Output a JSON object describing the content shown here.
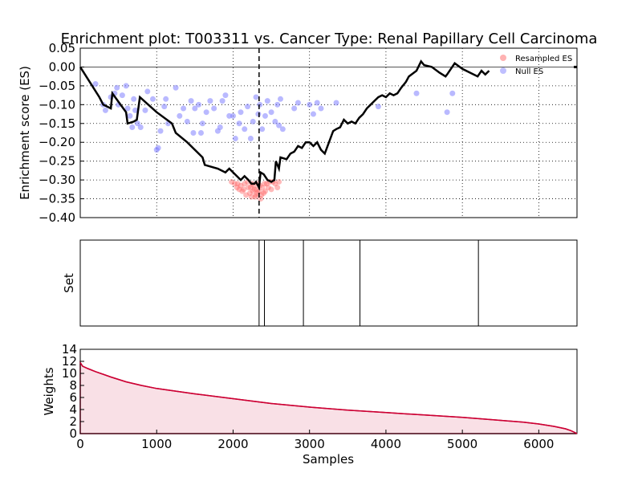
{
  "title": "Enrichment plot: T003311 vs. Cancer Type: Renal Papillary Cell Carcinoma",
  "colors": {
    "es_line": "#000000",
    "resampled": "#ff6666",
    "null_es": "#8080ff",
    "weights": "#cc0033",
    "grid": "#000000"
  },
  "chart_data": [
    {
      "type": "line",
      "panel": "enrichment",
      "ylabel": "Enrichment score (ES)",
      "xlim": [
        0,
        6500
      ],
      "ylim": [
        -0.4,
        0.05
      ],
      "yticks": [
        "0.05",
        "0.00",
        "−0.05",
        "−0.10",
        "−0.15",
        "−0.20",
        "−0.25",
        "−0.30",
        "−0.35",
        "−0.40"
      ],
      "ytick_values": [
        0.05,
        0.0,
        -0.05,
        -0.1,
        -0.15,
        -0.2,
        -0.25,
        -0.3,
        -0.35,
        -0.4
      ],
      "xgrid": [
        1000,
        2000,
        3000,
        4000,
        5000,
        6000
      ],
      "grid": true,
      "legend_position": "top-right",
      "legend": [
        {
          "label": "Resampled ES",
          "color": "#ff6666"
        },
        {
          "label": "Null ES",
          "color": "#8080ff"
        }
      ],
      "max_es_position": 2340,
      "es_series": {
        "name": "ES",
        "x": [
          0,
          250,
          300,
          400,
          420,
          600,
          620,
          700,
          740,
          780,
          1000,
          1200,
          1250,
          1400,
          1600,
          1630,
          1800,
          1900,
          1950,
          2050,
          2100,
          2150,
          2200,
          2240,
          2280,
          2300,
          2340,
          2360,
          2400,
          2450,
          2500,
          2540,
          2560,
          2600,
          2620,
          2700,
          2750,
          2800,
          2850,
          2900,
          2950,
          3000,
          3050,
          3100,
          3150,
          3200,
          3300,
          3310,
          3350,
          3400,
          3450,
          3500,
          3550,
          3600,
          3650,
          3700,
          3750,
          3800,
          3850,
          3900,
          3950,
          4000,
          4050,
          4100,
          4150,
          4200,
          4260,
          4300,
          4400,
          4460,
          4500,
          4600,
          4700,
          4780,
          4800,
          4900,
          5000,
          5100,
          5200,
          5250,
          5300,
          5350
        ],
        "y": [
          0.0,
          -0.08,
          -0.1,
          -0.11,
          -0.07,
          -0.12,
          -0.15,
          -0.145,
          -0.14,
          -0.08,
          -0.12,
          -0.15,
          -0.175,
          -0.2,
          -0.24,
          -0.26,
          -0.27,
          -0.28,
          -0.27,
          -0.29,
          -0.3,
          -0.29,
          -0.3,
          -0.31,
          -0.31,
          -0.305,
          -0.32,
          -0.28,
          -0.285,
          -0.3,
          -0.305,
          -0.3,
          -0.25,
          -0.27,
          -0.24,
          -0.245,
          -0.23,
          -0.225,
          -0.21,
          -0.215,
          -0.2,
          -0.2,
          -0.21,
          -0.2,
          -0.22,
          -0.23,
          -0.175,
          -0.17,
          -0.165,
          -0.16,
          -0.14,
          -0.15,
          -0.145,
          -0.15,
          -0.135,
          -0.125,
          -0.11,
          -0.1,
          -0.09,
          -0.08,
          -0.075,
          -0.08,
          -0.07,
          -0.075,
          -0.07,
          -0.055,
          -0.04,
          -0.025,
          -0.01,
          0.015,
          0.005,
          0.0,
          -0.015,
          -0.025,
          -0.02,
          0.01,
          -0.005,
          -0.015,
          -0.025,
          -0.01,
          -0.02,
          -0.01
        ]
      },
      "null_es": [
        [
          200,
          -0.045
        ],
        [
          300,
          -0.1
        ],
        [
          330,
          -0.115
        ],
        [
          400,
          -0.08
        ],
        [
          450,
          -0.07
        ],
        [
          480,
          -0.055
        ],
        [
          500,
          -0.1
        ],
        [
          550,
          -0.075
        ],
        [
          600,
          -0.05
        ],
        [
          620,
          -0.11
        ],
        [
          650,
          -0.13
        ],
        [
          680,
          -0.16
        ],
        [
          700,
          -0.085
        ],
        [
          720,
          -0.115
        ],
        [
          750,
          -0.15
        ],
        [
          790,
          -0.16
        ],
        [
          850,
          -0.115
        ],
        [
          880,
          -0.065
        ],
        [
          950,
          -0.085
        ],
        [
          1000,
          -0.22
        ],
        [
          1020,
          -0.215
        ],
        [
          1050,
          -0.17
        ],
        [
          1100,
          -0.105
        ],
        [
          1120,
          -0.085
        ],
        [
          1150,
          -0.15
        ],
        [
          1250,
          -0.055
        ],
        [
          1300,
          -0.13
        ],
        [
          1350,
          -0.11
        ],
        [
          1400,
          -0.145
        ],
        [
          1450,
          -0.09
        ],
        [
          1480,
          -0.175
        ],
        [
          1500,
          -0.11
        ],
        [
          1550,
          -0.1
        ],
        [
          1580,
          -0.175
        ],
        [
          1600,
          -0.15
        ],
        [
          1650,
          -0.12
        ],
        [
          1700,
          -0.09
        ],
        [
          1750,
          -0.11
        ],
        [
          1800,
          -0.17
        ],
        [
          1830,
          -0.16
        ],
        [
          1860,
          -0.09
        ],
        [
          1900,
          -0.075
        ],
        [
          1950,
          -0.13
        ],
        [
          2000,
          -0.13
        ],
        [
          2030,
          -0.19
        ],
        [
          2080,
          -0.15
        ],
        [
          2100,
          -0.12
        ],
        [
          2150,
          -0.165
        ],
        [
          2190,
          -0.105
        ],
        [
          2230,
          -0.19
        ],
        [
          2260,
          -0.145
        ],
        [
          2300,
          -0.08
        ],
        [
          2330,
          -0.125
        ],
        [
          2350,
          -0.1
        ],
        [
          2380,
          -0.165
        ],
        [
          2420,
          -0.13
        ],
        [
          2450,
          -0.09
        ],
        [
          2500,
          -0.12
        ],
        [
          2550,
          -0.145
        ],
        [
          2580,
          -0.1
        ],
        [
          2600,
          -0.155
        ],
        [
          2620,
          -0.085
        ],
        [
          2650,
          -0.165
        ],
        [
          2800,
          -0.11
        ],
        [
          2850,
          -0.095
        ],
        [
          3000,
          -0.1
        ],
        [
          3050,
          -0.125
        ],
        [
          3100,
          -0.095
        ],
        [
          3150,
          -0.11
        ],
        [
          3350,
          -0.095
        ],
        [
          3900,
          -0.105
        ],
        [
          4400,
          -0.07
        ],
        [
          4800,
          -0.12
        ],
        [
          4870,
          -0.07
        ]
      ],
      "resampled_es": [
        [
          1980,
          -0.305
        ],
        [
          2020,
          -0.31
        ],
        [
          2050,
          -0.32
        ],
        [
          2080,
          -0.325
        ],
        [
          2100,
          -0.315
        ],
        [
          2120,
          -0.33
        ],
        [
          2150,
          -0.31
        ],
        [
          2170,
          -0.34
        ],
        [
          2200,
          -0.32
        ],
        [
          2220,
          -0.335
        ],
        [
          2240,
          -0.345
        ],
        [
          2260,
          -0.33
        ],
        [
          2280,
          -0.325
        ],
        [
          2300,
          -0.34
        ],
        [
          2320,
          -0.335
        ],
        [
          2340,
          -0.33
        ],
        [
          2350,
          -0.315
        ],
        [
          2360,
          -0.35
        ],
        [
          2380,
          -0.32
        ],
        [
          2400,
          -0.335
        ],
        [
          2420,
          -0.33
        ],
        [
          2440,
          -0.31
        ],
        [
          2460,
          -0.32
        ],
        [
          2480,
          -0.305
        ],
        [
          2500,
          -0.325
        ],
        [
          2520,
          -0.305
        ],
        [
          2550,
          -0.31
        ],
        [
          2580,
          -0.32
        ],
        [
          2600,
          -0.305
        ],
        [
          2250,
          -0.31
        ],
        [
          2190,
          -0.305
        ],
        [
          2330,
          -0.31
        ],
        [
          2310,
          -0.325
        ],
        [
          2270,
          -0.315
        ],
        [
          2370,
          -0.34
        ],
        [
          2140,
          -0.325
        ],
        [
          2060,
          -0.31
        ],
        [
          2410,
          -0.31
        ],
        [
          2230,
          -0.32
        ],
        [
          2290,
          -0.345
        ]
      ]
    },
    {
      "type": "barcode",
      "panel": "set",
      "ylabel": "Set",
      "xlim": [
        0,
        6500
      ],
      "hits": [
        2340,
        2410,
        2920,
        3660,
        5210
      ]
    },
    {
      "type": "area",
      "panel": "weights",
      "xlabel": "Samples",
      "ylabel": "Weights",
      "xlim": [
        0,
        6500
      ],
      "ylim": [
        0,
        14
      ],
      "xticks": [
        "0",
        "1000",
        "2000",
        "3000",
        "4000",
        "5000",
        "6000"
      ],
      "xtick_values": [
        0,
        1000,
        2000,
        3000,
        4000,
        5000,
        6000
      ],
      "yticks": [
        "0",
        "2",
        "4",
        "6",
        "8",
        "10",
        "12",
        "14"
      ],
      "ytick_values": [
        0,
        2,
        4,
        6,
        8,
        10,
        12,
        14
      ],
      "x": [
        0,
        30,
        100,
        200,
        400,
        600,
        800,
        1000,
        1500,
        2000,
        2500,
        3000,
        3500,
        4000,
        4500,
        5000,
        5500,
        5800,
        6000,
        6200,
        6350,
        6420,
        6470,
        6500
      ],
      "y": [
        11.8,
        11.2,
        10.8,
        10.3,
        9.4,
        8.6,
        8.0,
        7.5,
        6.6,
        5.8,
        5.0,
        4.4,
        3.9,
        3.5,
        3.1,
        2.7,
        2.2,
        1.9,
        1.6,
        1.2,
        0.8,
        0.5,
        0.2,
        0.0
      ]
    }
  ]
}
